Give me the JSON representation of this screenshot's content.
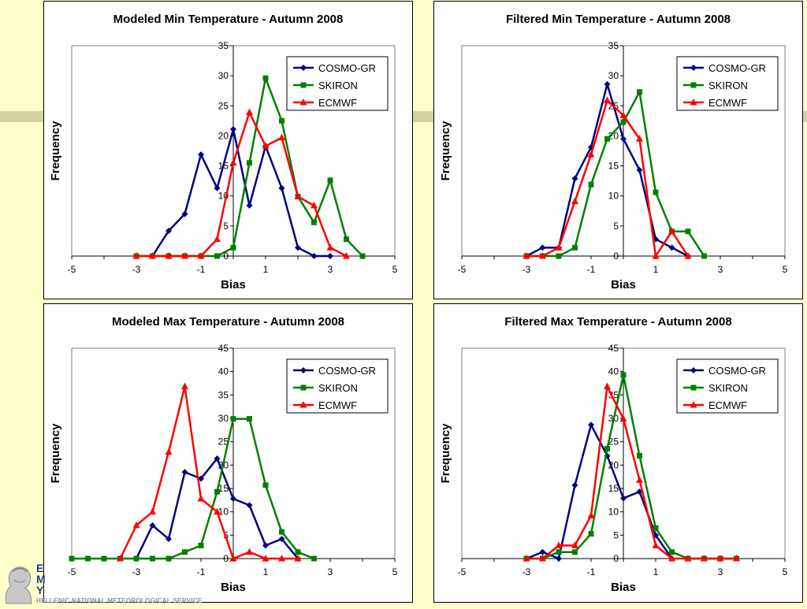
{
  "footer": {
    "letters": [
      "E",
      "M",
      "Y"
    ],
    "text": "HELLENIC NATIONAL METEOROLOGICAL SERVICE"
  },
  "colors": {
    "background": "#ffffcc",
    "COSMO-GR": "#000080",
    "SKIRON": "#008000",
    "ECMWF": "#ff0000"
  },
  "chart_data": [
    {
      "type": "line",
      "title": "Modeled Min Temperature - Autumn 2008",
      "xlabel": "Bias",
      "ylabel": "Frequency",
      "xlim": [
        -5,
        5
      ],
      "ylim": [
        0,
        35
      ],
      "xticks": [
        -5,
        -3,
        -1,
        1,
        3,
        5
      ],
      "yticks": [
        0,
        5,
        10,
        15,
        20,
        25,
        30,
        35
      ],
      "grid": false,
      "legend": "top-right",
      "series": [
        {
          "name": "COSMO-GR",
          "marker": "diamond",
          "x": [
            -2.5,
            -2,
            -1.5,
            -1,
            -0.5,
            0,
            0.5,
            1,
            1.5,
            2,
            2.5,
            3
          ],
          "y": [
            0,
            4.2,
            7,
            16.9,
            11.3,
            21.1,
            8.4,
            18.3,
            11.3,
            1.4,
            0,
            0
          ]
        },
        {
          "name": "SKIRON",
          "marker": "square",
          "x": [
            -3,
            -2.5,
            -2,
            -1.5,
            -1,
            -0.5,
            0,
            0.5,
            1,
            1.5,
            2,
            2.5,
            3,
            3.5,
            4
          ],
          "y": [
            0,
            0,
            0,
            0,
            0,
            0,
            1.4,
            15.5,
            29.6,
            22.5,
            9.9,
            5.6,
            12.6,
            2.8,
            0
          ]
        },
        {
          "name": "ECMWF",
          "marker": "triangle",
          "x": [
            -3,
            -2.5,
            -2,
            -1.5,
            -1,
            -0.5,
            0,
            0.5,
            1,
            1.5,
            2,
            2.5,
            3,
            3.5
          ],
          "y": [
            0,
            0,
            0,
            0,
            0,
            2.8,
            15.5,
            23.9,
            18.3,
            19.7,
            9.9,
            8.4,
            1.4,
            0
          ]
        }
      ]
    },
    {
      "type": "line",
      "title": "Filtered Min Temperature - Autumn 2008",
      "xlabel": "Bias",
      "ylabel": "Frequency",
      "xlim": [
        -5,
        5
      ],
      "ylim": [
        0,
        35
      ],
      "xticks": [
        -5,
        -3,
        -1,
        1,
        3,
        5
      ],
      "yticks": [
        0,
        5,
        10,
        15,
        20,
        25,
        30,
        35
      ],
      "grid": false,
      "legend": "top-right",
      "series": [
        {
          "name": "COSMO-GR",
          "marker": "diamond",
          "x": [
            -3,
            -2.5,
            -2,
            -1.5,
            -1,
            -0.5,
            0,
            0.5,
            1,
            1.5,
            2
          ],
          "y": [
            0,
            1.4,
            1.4,
            12.9,
            18.1,
            28.6,
            19.5,
            14.3,
            2.8,
            1.4,
            0
          ]
        },
        {
          "name": "SKIRON",
          "marker": "square",
          "x": [
            -3,
            -2.5,
            -2,
            -1.5,
            -1,
            -0.5,
            0,
            0.5,
            1,
            1.5,
            2,
            2.5
          ],
          "y": [
            0,
            0,
            0,
            1.4,
            11.9,
            19.5,
            22.3,
            27.3,
            10.6,
            4.1,
            4.1,
            0
          ]
        },
        {
          "name": "ECMWF",
          "marker": "triangle",
          "x": [
            -3,
            -2.5,
            -2,
            -1.5,
            -1,
            -0.5,
            0,
            0.5,
            1,
            1.5,
            2
          ],
          "y": [
            0,
            0,
            1.4,
            9.1,
            16.9,
            25.9,
            23.4,
            19.5,
            0,
            4.1,
            0
          ]
        }
      ]
    },
    {
      "type": "line",
      "title": "Modeled Max Temperature - Autumn 2008",
      "xlabel": "Bias",
      "ylabel": "Frequency",
      "xlim": [
        -5,
        5
      ],
      "ylim": [
        0,
        45
      ],
      "xticks": [
        -5,
        -3,
        -1,
        1,
        3,
        5
      ],
      "yticks": [
        0,
        5,
        10,
        15,
        20,
        25,
        30,
        35,
        40,
        45
      ],
      "grid": false,
      "legend": "top-right",
      "series": [
        {
          "name": "COSMO-GR",
          "marker": "diamond",
          "x": [
            -3,
            -2.5,
            -2,
            -1.5,
            -1,
            -0.5,
            0,
            0.5,
            1,
            1.5,
            2
          ],
          "y": [
            0,
            7.1,
            4.2,
            18.5,
            17.1,
            21.4,
            12.8,
            11.4,
            2.8,
            4.2,
            0
          ]
        },
        {
          "name": "SKIRON",
          "marker": "square",
          "x": [
            -5,
            -4.5,
            -4,
            -3.5,
            -3,
            -2.5,
            -2,
            -1.5,
            -1,
            -0.5,
            0,
            0.5,
            1,
            1.5,
            2,
            2.5
          ],
          "y": [
            0,
            0,
            0,
            0,
            0,
            0,
            0,
            1.4,
            2.8,
            14.3,
            29.9,
            29.9,
            15.7,
            5.7,
            1.4,
            0
          ]
        },
        {
          "name": "ECMWF",
          "marker": "triangle",
          "x": [
            -3.5,
            -3,
            -2.5,
            -2,
            -1.5,
            -1,
            -0.5,
            0,
            0.5,
            1,
            1.5,
            2
          ],
          "y": [
            0,
            7.1,
            10,
            22.8,
            36.8,
            12.8,
            10,
            0,
            1.4,
            0,
            0,
            0
          ]
        }
      ]
    },
    {
      "type": "line",
      "title": "Filtered Max Temperature - Autumn 2008",
      "xlabel": "Bias",
      "ylabel": "Frequency",
      "xlim": [
        -5,
        5
      ],
      "ylim": [
        0,
        45
      ],
      "xticks": [
        -5,
        -3,
        -1,
        1,
        3,
        5
      ],
      "yticks": [
        0,
        5,
        10,
        15,
        20,
        25,
        30,
        35,
        40,
        45
      ],
      "grid": false,
      "legend": "top-right",
      "series": [
        {
          "name": "COSMO-GR",
          "marker": "diamond",
          "x": [
            -3,
            -2.5,
            -2,
            -1.5,
            -1,
            -0.5,
            0,
            0.5,
            1,
            1.5
          ],
          "y": [
            0,
            1.4,
            0,
            15.7,
            28.6,
            22,
            12.9,
            14.3,
            5,
            0
          ]
        },
        {
          "name": "SKIRON",
          "marker": "square",
          "x": [
            -3,
            -2.5,
            -2,
            -1.5,
            -1,
            -0.5,
            0,
            0.5,
            1,
            1.5,
            2,
            2.5,
            3,
            3.5
          ],
          "y": [
            0,
            0,
            1.4,
            1.4,
            5.3,
            23.5,
            39.3,
            22,
            6.5,
            1.4,
            0,
            0,
            0,
            0
          ]
        },
        {
          "name": "ECMWF",
          "marker": "triangle",
          "x": [
            -3,
            -2.5,
            -2,
            -1.5,
            -1,
            -0.5,
            0,
            0.5,
            1,
            1.5,
            2,
            2.5,
            3,
            3.5
          ],
          "y": [
            0,
            0,
            2.8,
            2.8,
            9.2,
            36.8,
            29.9,
            16.8,
            2.8,
            0,
            0,
            0,
            0,
            0
          ]
        }
      ]
    }
  ]
}
